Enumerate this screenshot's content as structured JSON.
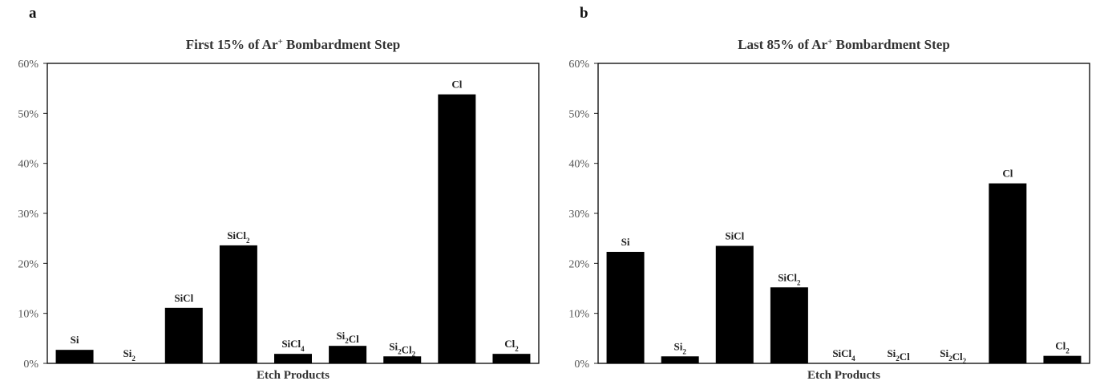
{
  "chart_data": [
    {
      "type": "bar",
      "panel_label": "a",
      "title_parts": [
        "First 15% of Ar",
        "+",
        " Bombardment Step"
      ],
      "xlabel": "Etch Products",
      "ylabel": "",
      "ylim": [
        0,
        60
      ],
      "yticks": [
        "0%",
        "10%",
        "20%",
        "30%",
        "40%",
        "50%",
        "60%"
      ],
      "categories": [
        [
          "Si",
          "",
          ""
        ],
        [
          "Si",
          "2",
          ""
        ],
        [
          "SiCl",
          "",
          ""
        ],
        [
          "SiCl",
          "2",
          ""
        ],
        [
          "SiCl",
          "4",
          ""
        ],
        [
          "Si",
          "2",
          "Cl"
        ],
        [
          "Si",
          "2",
          "Cl",
          "2"
        ],
        [
          "Cl",
          "",
          ""
        ],
        [
          "Cl",
          "2",
          ""
        ]
      ],
      "values": [
        2.7,
        0.0,
        11.1,
        23.6,
        1.9,
        3.5,
        1.4,
        53.8,
        1.9
      ],
      "bar_color": "#000000",
      "grid": false
    },
    {
      "type": "bar",
      "panel_label": "b",
      "title_parts": [
        "Last 85% of Ar",
        "+",
        " Bombardment Step"
      ],
      "xlabel": "Etch Products",
      "ylabel": "",
      "ylim": [
        0,
        60
      ],
      "yticks": [
        "0%",
        "10%",
        "20%",
        "30%",
        "40%",
        "50%",
        "60%"
      ],
      "categories": [
        [
          "Si",
          "",
          ""
        ],
        [
          "Si",
          "2",
          ""
        ],
        [
          "SiCl",
          "",
          ""
        ],
        [
          "SiCl",
          "2",
          ""
        ],
        [
          "SiCl",
          "4",
          ""
        ],
        [
          "Si",
          "2",
          "Cl"
        ],
        [
          "Si",
          "2",
          "Cl",
          "2"
        ],
        [
          "Cl",
          "",
          ""
        ],
        [
          "Cl",
          "2",
          ""
        ]
      ],
      "values": [
        22.3,
        1.4,
        23.5,
        15.2,
        0.0,
        0.0,
        0.0,
        36.0,
        1.5
      ],
      "bar_color": "#000000",
      "grid": false
    }
  ]
}
